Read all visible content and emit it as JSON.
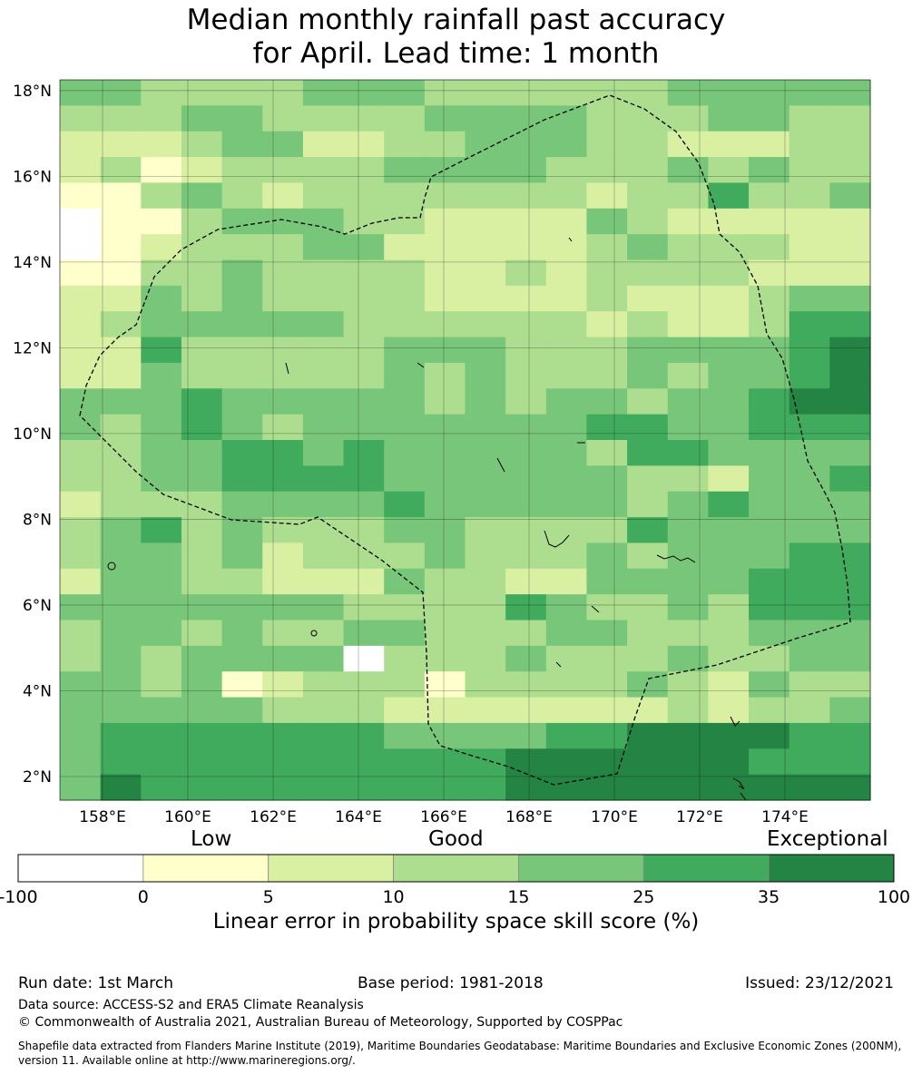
{
  "title": {
    "line1": "Median monthly rainfall past accuracy",
    "line2": "for April. Lead time: 1 month"
  },
  "map": {
    "lat_labels": [
      "18°N",
      "16°N",
      "14°N",
      "12°N",
      "10°N",
      "8°N",
      "6°N",
      "4°N",
      "2°N"
    ],
    "lon_labels": [
      "158°E",
      "160°E",
      "162°E",
      "164°E",
      "166°E",
      "168°E",
      "170°E",
      "172°E",
      "174°E"
    ],
    "lat_values": [
      18,
      16,
      14,
      12,
      10,
      8,
      6,
      4,
      2
    ],
    "lon_values": [
      158,
      160,
      162,
      164,
      166,
      168,
      170,
      172,
      174
    ],
    "extent": {
      "lon_min": 157,
      "lon_max": 176,
      "lat_min": 1.45,
      "lat_max": 18.25
    },
    "colors": [
      "#ffffff",
      "#ffffcc",
      "#d9f0a3",
      "#addd8e",
      "#78c679",
      "#41ab5d",
      "#238443"
    ],
    "grid_rows": [
      "44333344433333344444",
      "33344333344443334433",
      "22234422334443322233",
      "23123333444433343433",
      "11343233333332335334",
      "01134443322224322222",
      "01233344222223433322",
      "11334333322323333222",
      "22434333322223222344",
      "23444443333332322355",
      "22533333444333444456",
      "22433333434333434456",
      "44454444434344344566",
      "43454344444445544555",
      "33445545444443554444",
      "33445555444444332445",
      "23334444544444345444",
      "34534333443333544444",
      "34434233343334344455",
      "24433222433224444555",
      "44444443333543343555",
      "34434334433344333444",
      "34344440333433343344",
      "44341233313333432433",
      "44444333222222232334",
      "45555555444455666655",
      "45555555555666666555",
      "46555555555666666666"
    ]
  },
  "colorbar": {
    "categories": [
      "Low",
      "Good",
      "Exceptional"
    ],
    "ticks": [
      "-100",
      "0",
      "5",
      "10",
      "15",
      "25",
      "35",
      "100"
    ],
    "colors": [
      "#ffffff",
      "#ffffcc",
      "#d9f0a3",
      "#addd8e",
      "#78c679",
      "#41ab5d",
      "#238443"
    ],
    "label": "Linear error in probability space skill score (%)"
  },
  "footer": {
    "run_date": "Run date: 1st March",
    "base_period": "Base period: 1981-2018",
    "issued": "Issued: 23/12/2021",
    "data_source": "Data source: ACCESS-S2 and ERA5 Climate Reanalysis",
    "copyright": "© Commonwealth of Australia 2021, Australian Bureau of Meteorology, Supported by COSPPac",
    "shapefile_line1": "Shapefile data extracted from Flanders Marine Institute (2019), Maritime Boundaries Geodatabase: Maritime Boundaries and Exclusive Economic Zones (200NM),",
    "shapefile_line2": "version 11. Available online at http://www.marineregions.org/."
  }
}
